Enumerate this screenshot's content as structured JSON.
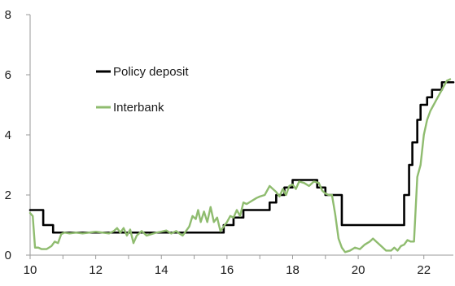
{
  "chart_data": {
    "type": "line",
    "xlim": [
      10,
      22.9
    ],
    "ylim": [
      0,
      8
    ],
    "x_ticks": [
      10,
      12,
      14,
      16,
      18,
      20,
      22
    ],
    "y_ticks": [
      0,
      2,
      4,
      6,
      8
    ],
    "grid": false,
    "legend_placement": "upper-left inside plot",
    "series": [
      {
        "name": "Policy deposit",
        "color": "#000000",
        "step": true,
        "x": [
          10.0,
          10.4,
          10.7,
          15.9,
          16.2,
          16.5,
          17.3,
          17.5,
          17.75,
          18.0,
          18.25,
          18.5,
          18.75,
          19.0,
          19.25,
          19.5,
          21.4,
          21.55,
          21.65,
          21.8,
          21.9,
          22.0,
          22.1,
          22.25,
          22.4,
          22.55,
          22.9
        ],
        "y": [
          1.5,
          1.0,
          0.75,
          1.0,
          1.25,
          1.5,
          1.75,
          2.0,
          2.25,
          2.5,
          2.5,
          2.5,
          2.25,
          2.0,
          2.0,
          1.0,
          2.0,
          3.0,
          3.75,
          4.5,
          5.0,
          5.0,
          5.25,
          5.5,
          5.5,
          5.75,
          5.75
        ]
      },
      {
        "name": "Interbank",
        "color": "#8fbc6f",
        "step": false,
        "x": [
          10.0,
          10.08,
          10.15,
          10.25,
          10.35,
          10.5,
          10.65,
          10.75,
          10.85,
          10.95,
          11.05,
          11.2,
          11.4,
          11.6,
          11.8,
          12.0,
          12.2,
          12.4,
          12.55,
          12.65,
          12.75,
          12.85,
          12.95,
          13.05,
          13.15,
          13.25,
          13.4,
          13.55,
          13.7,
          13.85,
          14.0,
          14.15,
          14.3,
          14.45,
          14.55,
          14.65,
          14.75,
          14.85,
          14.95,
          15.05,
          15.12,
          15.2,
          15.3,
          15.4,
          15.5,
          15.6,
          15.7,
          15.8,
          15.9,
          16.0,
          16.1,
          16.2,
          16.3,
          16.4,
          16.5,
          16.6,
          16.75,
          16.9,
          17.0,
          17.15,
          17.3,
          17.4,
          17.5,
          17.6,
          17.7,
          17.8,
          17.9,
          18.0,
          18.1,
          18.2,
          18.35,
          18.5,
          18.65,
          18.8,
          18.9,
          19.0,
          19.1,
          19.2,
          19.3,
          19.4,
          19.5,
          19.6,
          19.75,
          19.9,
          20.05,
          20.2,
          20.35,
          20.45,
          20.55,
          20.7,
          20.85,
          21.0,
          21.1,
          21.2,
          21.3,
          21.4,
          21.5,
          21.6,
          21.7,
          21.8,
          21.9,
          22.0,
          22.1,
          22.2,
          22.3,
          22.4,
          22.5,
          22.6,
          22.7,
          22.8
        ],
        "y": [
          1.4,
          1.3,
          0.25,
          0.25,
          0.2,
          0.2,
          0.3,
          0.45,
          0.4,
          0.7,
          0.75,
          0.72,
          0.75,
          0.72,
          0.75,
          0.78,
          0.75,
          0.72,
          0.8,
          0.9,
          0.75,
          0.9,
          0.65,
          0.85,
          0.4,
          0.65,
          0.8,
          0.65,
          0.7,
          0.75,
          0.78,
          0.82,
          0.72,
          0.8,
          0.72,
          0.65,
          0.8,
          0.95,
          1.3,
          1.2,
          1.5,
          1.1,
          1.45,
          1.1,
          1.6,
          1.1,
          1.25,
          0.8,
          0.95,
          1.1,
          1.3,
          1.25,
          1.5,
          1.3,
          1.75,
          1.7,
          1.8,
          1.9,
          1.95,
          2.0,
          2.3,
          2.2,
          2.1,
          1.95,
          2.2,
          2.0,
          2.3,
          2.35,
          2.2,
          2.45,
          2.4,
          2.3,
          2.45,
          2.4,
          2.15,
          2.05,
          2.0,
          2.0,
          1.35,
          0.55,
          0.25,
          0.1,
          0.15,
          0.25,
          0.2,
          0.35,
          0.45,
          0.55,
          0.45,
          0.3,
          0.15,
          0.15,
          0.25,
          0.15,
          0.3,
          0.35,
          0.5,
          0.45,
          0.45,
          2.6,
          3.0,
          4.0,
          4.5,
          4.8,
          5.0,
          5.2,
          5.4,
          5.6,
          5.8,
          5.85
        ]
      }
    ]
  }
}
